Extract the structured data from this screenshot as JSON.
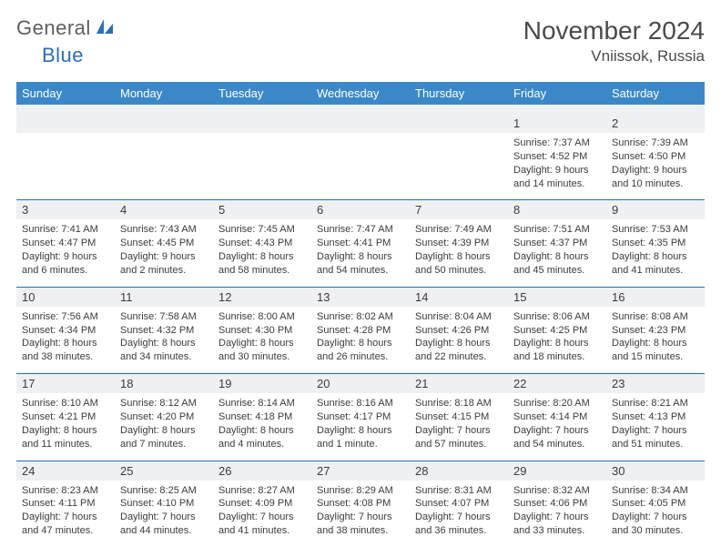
{
  "brand": {
    "name1": "General",
    "name2": "Blue"
  },
  "title": "November 2024",
  "location": "Vniissok, Russia",
  "colors": {
    "header_bg": "#3b88c9",
    "header_fg": "#ffffff",
    "rule": "#2670b8",
    "band": "#eef0f2",
    "text": "#3b3b3b",
    "title": "#4a4a4a"
  },
  "day_names": [
    "Sunday",
    "Monday",
    "Tuesday",
    "Wednesday",
    "Thursday",
    "Friday",
    "Saturday"
  ],
  "weeks": [
    [
      null,
      null,
      null,
      null,
      null,
      {
        "n": "1",
        "sunrise": "7:37 AM",
        "sunset": "4:52 PM",
        "daylight": "9 hours and 14 minutes."
      },
      {
        "n": "2",
        "sunrise": "7:39 AM",
        "sunset": "4:50 PM",
        "daylight": "9 hours and 10 minutes."
      }
    ],
    [
      {
        "n": "3",
        "sunrise": "7:41 AM",
        "sunset": "4:47 PM",
        "daylight": "9 hours and 6 minutes."
      },
      {
        "n": "4",
        "sunrise": "7:43 AM",
        "sunset": "4:45 PM",
        "daylight": "9 hours and 2 minutes."
      },
      {
        "n": "5",
        "sunrise": "7:45 AM",
        "sunset": "4:43 PM",
        "daylight": "8 hours and 58 minutes."
      },
      {
        "n": "6",
        "sunrise": "7:47 AM",
        "sunset": "4:41 PM",
        "daylight": "8 hours and 54 minutes."
      },
      {
        "n": "7",
        "sunrise": "7:49 AM",
        "sunset": "4:39 PM",
        "daylight": "8 hours and 50 minutes."
      },
      {
        "n": "8",
        "sunrise": "7:51 AM",
        "sunset": "4:37 PM",
        "daylight": "8 hours and 45 minutes."
      },
      {
        "n": "9",
        "sunrise": "7:53 AM",
        "sunset": "4:35 PM",
        "daylight": "8 hours and 41 minutes."
      }
    ],
    [
      {
        "n": "10",
        "sunrise": "7:56 AM",
        "sunset": "4:34 PM",
        "daylight": "8 hours and 38 minutes."
      },
      {
        "n": "11",
        "sunrise": "7:58 AM",
        "sunset": "4:32 PM",
        "daylight": "8 hours and 34 minutes."
      },
      {
        "n": "12",
        "sunrise": "8:00 AM",
        "sunset": "4:30 PM",
        "daylight": "8 hours and 30 minutes."
      },
      {
        "n": "13",
        "sunrise": "8:02 AM",
        "sunset": "4:28 PM",
        "daylight": "8 hours and 26 minutes."
      },
      {
        "n": "14",
        "sunrise": "8:04 AM",
        "sunset": "4:26 PM",
        "daylight": "8 hours and 22 minutes."
      },
      {
        "n": "15",
        "sunrise": "8:06 AM",
        "sunset": "4:25 PM",
        "daylight": "8 hours and 18 minutes."
      },
      {
        "n": "16",
        "sunrise": "8:08 AM",
        "sunset": "4:23 PM",
        "daylight": "8 hours and 15 minutes."
      }
    ],
    [
      {
        "n": "17",
        "sunrise": "8:10 AM",
        "sunset": "4:21 PM",
        "daylight": "8 hours and 11 minutes."
      },
      {
        "n": "18",
        "sunrise": "8:12 AM",
        "sunset": "4:20 PM",
        "daylight": "8 hours and 7 minutes."
      },
      {
        "n": "19",
        "sunrise": "8:14 AM",
        "sunset": "4:18 PM",
        "daylight": "8 hours and 4 minutes."
      },
      {
        "n": "20",
        "sunrise": "8:16 AM",
        "sunset": "4:17 PM",
        "daylight": "8 hours and 1 minute."
      },
      {
        "n": "21",
        "sunrise": "8:18 AM",
        "sunset": "4:15 PM",
        "daylight": "7 hours and 57 minutes."
      },
      {
        "n": "22",
        "sunrise": "8:20 AM",
        "sunset": "4:14 PM",
        "daylight": "7 hours and 54 minutes."
      },
      {
        "n": "23",
        "sunrise": "8:21 AM",
        "sunset": "4:13 PM",
        "daylight": "7 hours and 51 minutes."
      }
    ],
    [
      {
        "n": "24",
        "sunrise": "8:23 AM",
        "sunset": "4:11 PM",
        "daylight": "7 hours and 47 minutes."
      },
      {
        "n": "25",
        "sunrise": "8:25 AM",
        "sunset": "4:10 PM",
        "daylight": "7 hours and 44 minutes."
      },
      {
        "n": "26",
        "sunrise": "8:27 AM",
        "sunset": "4:09 PM",
        "daylight": "7 hours and 41 minutes."
      },
      {
        "n": "27",
        "sunrise": "8:29 AM",
        "sunset": "4:08 PM",
        "daylight": "7 hours and 38 minutes."
      },
      {
        "n": "28",
        "sunrise": "8:31 AM",
        "sunset": "4:07 PM",
        "daylight": "7 hours and 36 minutes."
      },
      {
        "n": "29",
        "sunrise": "8:32 AM",
        "sunset": "4:06 PM",
        "daylight": "7 hours and 33 minutes."
      },
      {
        "n": "30",
        "sunrise": "8:34 AM",
        "sunset": "4:05 PM",
        "daylight": "7 hours and 30 minutes."
      }
    ]
  ],
  "labels": {
    "sunrise": "Sunrise: ",
    "sunset": "Sunset: ",
    "daylight": "Daylight: "
  }
}
